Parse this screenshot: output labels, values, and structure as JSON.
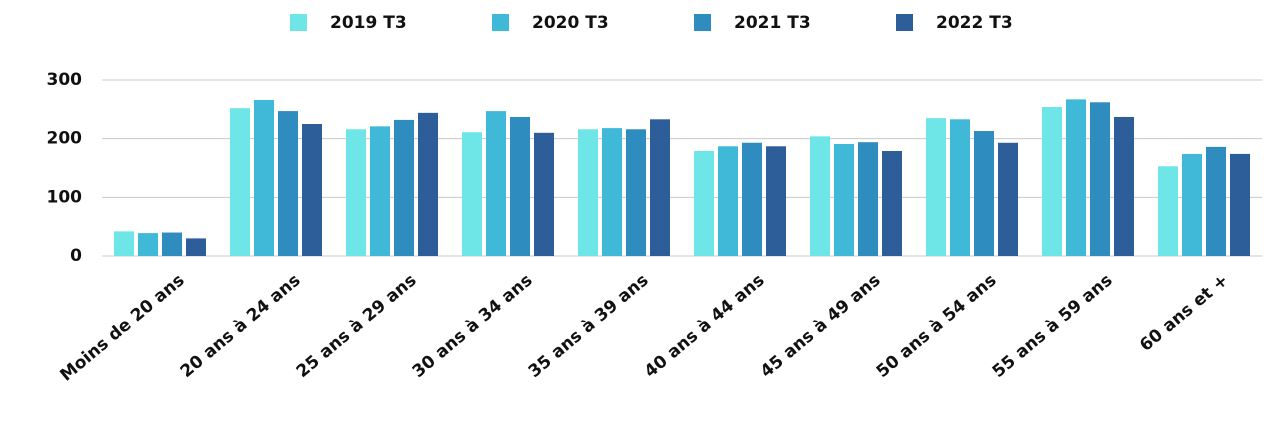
{
  "chart_data": {
    "type": "bar",
    "categories": [
      "Moins de 20 ans",
      "20 ans à 24 ans",
      "25 ans à 29 ans",
      "30 ans à 34 ans",
      "35 ans à 39 ans",
      "40 ans à 44 ans",
      "45 ans à 49 ans",
      "50 ans à 54 ans",
      "55 ans à 59 ans",
      "60 ans et +"
    ],
    "series": [
      {
        "name": "2019 T3",
        "color": "#6ee6e8",
        "values": [
          42,
          252,
          216,
          211,
          216,
          179,
          204,
          235,
          254,
          153
        ]
      },
      {
        "name": "2020 T3",
        "color": "#40b8d8",
        "values": [
          39,
          266,
          221,
          247,
          218,
          187,
          191,
          233,
          267,
          174
        ]
      },
      {
        "name": "2021 T3",
        "color": "#2e8cbf",
        "values": [
          40,
          247,
          232,
          237,
          216,
          193,
          194,
          213,
          262,
          186
        ]
      },
      {
        "name": "2022 T3",
        "color": "#2d5e99",
        "values": [
          30,
          225,
          244,
          210,
          233,
          187,
          179,
          193,
          237,
          174
        ]
      }
    ],
    "ylim": [
      0,
      300
    ],
    "yticks": [
      0,
      100,
      200,
      300
    ],
    "grid": true,
    "legend": "top"
  }
}
